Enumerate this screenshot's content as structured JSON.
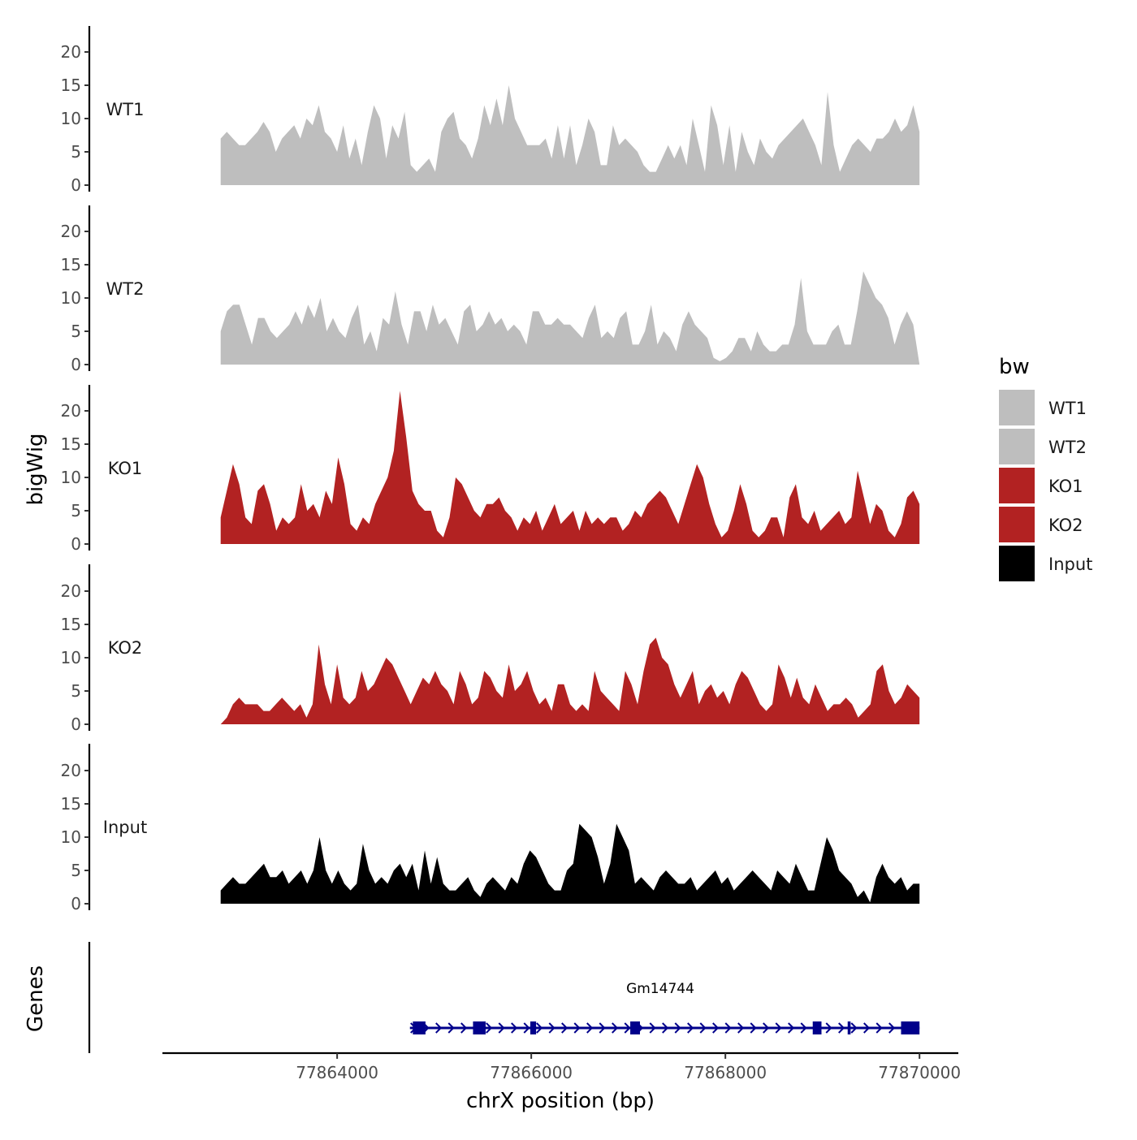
{
  "chart_data": {
    "type": "area",
    "title": "",
    "ylabel": "bigWig",
    "genes_label": "Genes",
    "xlabel": "chrX position (bp)",
    "x_range": [
      77862800,
      77870000
    ],
    "xlim": [
      77862200,
      77870400
    ],
    "x_ticks": [
      77864000,
      77866000,
      77868000,
      77870000
    ],
    "x_tick_labels": [
      "77864000",
      "77866000",
      "77868000",
      "77870000"
    ],
    "y_range": [
      0,
      24
    ],
    "y_ticks": [
      0,
      5,
      10,
      15,
      20
    ],
    "y_tick_labels": [
      "0",
      "5",
      "10",
      "15",
      "20"
    ],
    "legend": {
      "title": "bw",
      "position": "right",
      "entries": [
        {
          "label": "WT1",
          "color": "#bebebe"
        },
        {
          "label": "WT2",
          "color": "#bebebe"
        },
        {
          "label": "KO1",
          "color": "#b22222"
        },
        {
          "label": "KO2",
          "color": "#b22222"
        },
        {
          "label": "Input",
          "color": "#000000"
        }
      ]
    },
    "series": [
      {
        "name": "WT1",
        "color": "#bebebe",
        "values": [
          7,
          8,
          7,
          6,
          6,
          7,
          8,
          9.5,
          8,
          5,
          7,
          8,
          9,
          7,
          10,
          9,
          12,
          8,
          7,
          5,
          9,
          4,
          7,
          3,
          8,
          12,
          10,
          4,
          9,
          7,
          11,
          3,
          2,
          3,
          4,
          2,
          8,
          10,
          11,
          7,
          6,
          4,
          7,
          12,
          9,
          13,
          9,
          15,
          10,
          8,
          6,
          6,
          6,
          7,
          4,
          9,
          4,
          9,
          3,
          6,
          10,
          8,
          3,
          3,
          9,
          6,
          7,
          6,
          5,
          3,
          2,
          2,
          4,
          6,
          4,
          6,
          3,
          10,
          6,
          2,
          12,
          9,
          3,
          9,
          2,
          8,
          5,
          3,
          7,
          5,
          4,
          6,
          7,
          8,
          9,
          10,
          8,
          6,
          3,
          14,
          6,
          2,
          4,
          6,
          7,
          6,
          5,
          7,
          7,
          8,
          10,
          8,
          9,
          12,
          8
        ]
      },
      {
        "name": "WT2",
        "color": "#bebebe",
        "values": [
          5,
          8,
          9,
          9,
          6,
          3,
          7,
          7,
          5,
          4,
          5,
          6,
          8,
          6,
          9,
          7,
          10,
          5,
          7,
          5,
          4,
          7,
          9,
          3,
          5,
          2,
          7,
          6,
          11,
          6,
          3,
          8,
          8,
          5,
          9,
          6,
          7,
          5,
          3,
          8,
          9,
          5,
          6,
          8,
          6,
          7,
          5,
          6,
          5,
          3,
          8,
          8,
          6,
          6,
          7,
          6,
          6,
          5,
          4,
          7,
          9,
          4,
          5,
          4,
          7,
          8,
          3,
          3,
          5,
          9,
          3,
          5,
          4,
          2,
          6,
          8,
          6,
          5,
          4,
          1,
          0.5,
          1,
          2,
          4,
          4,
          2,
          5,
          3,
          2,
          2,
          3,
          3,
          6,
          13,
          5,
          3,
          3,
          3,
          5,
          6,
          3,
          3,
          8,
          14,
          12,
          10,
          9,
          7,
          3,
          6,
          8,
          6,
          0
        ]
      },
      {
        "name": "KO1",
        "color": "#b22222",
        "values": [
          4,
          8,
          12,
          9,
          4,
          3,
          8,
          9,
          6,
          2,
          4,
          3,
          4,
          9,
          5,
          6,
          4,
          8,
          6,
          13,
          9,
          3,
          2,
          4,
          3,
          6,
          8,
          10,
          14,
          23,
          16,
          8,
          6,
          5,
          5,
          2,
          1,
          4,
          10,
          9,
          7,
          5,
          4,
          6,
          6,
          7,
          5,
          4,
          2,
          4,
          3,
          5,
          2,
          4,
          6,
          3,
          4,
          5,
          2,
          5,
          3,
          4,
          3,
          4,
          4,
          2,
          3,
          5,
          4,
          6,
          7,
          8,
          7,
          5,
          3,
          6,
          9,
          12,
          10,
          6,
          3,
          1,
          2,
          5,
          9,
          6,
          2,
          1,
          2,
          4,
          4,
          1,
          7,
          9,
          4,
          3,
          5,
          2,
          3,
          4,
          5,
          3,
          4,
          11,
          7,
          3,
          6,
          5,
          2,
          1,
          3,
          7,
          8,
          6
        ]
      },
      {
        "name": "KO2",
        "color": "#b22222",
        "values": [
          0,
          1,
          3,
          4,
          3,
          3,
          3,
          2,
          2,
          3,
          4,
          3,
          2,
          3,
          1,
          3,
          12,
          6,
          3,
          9,
          4,
          3,
          4,
          8,
          5,
          6,
          8,
          10,
          9,
          7,
          5,
          3,
          5,
          7,
          6,
          8,
          6,
          5,
          3,
          8,
          6,
          3,
          4,
          8,
          7,
          5,
          4,
          9,
          5,
          6,
          8,
          5,
          3,
          4,
          2,
          6,
          6,
          3,
          2,
          3,
          2,
          8,
          5,
          4,
          3,
          2,
          8,
          6,
          3,
          8,
          12,
          13,
          10,
          9,
          6,
          4,
          6,
          8,
          3,
          5,
          6,
          4,
          5,
          3,
          6,
          8,
          7,
          5,
          3,
          2,
          3,
          9,
          7,
          4,
          7,
          4,
          3,
          6,
          4,
          2,
          3,
          3,
          4,
          3,
          1,
          2,
          3,
          8,
          9,
          5,
          3,
          4,
          6,
          5,
          4
        ]
      },
      {
        "name": "Input",
        "color": "#000000",
        "values": [
          2,
          3,
          4,
          3,
          3,
          4,
          5,
          6,
          4,
          4,
          5,
          3,
          4,
          5,
          3,
          5,
          10,
          5,
          3,
          5,
          3,
          2,
          3,
          9,
          5,
          3,
          4,
          3,
          5,
          6,
          4,
          6,
          2,
          8,
          3,
          7,
          3,
          2,
          2,
          3,
          4,
          2,
          1,
          3,
          4,
          3,
          2,
          4,
          3,
          6,
          8,
          7,
          5,
          3,
          2,
          2,
          5,
          6,
          12,
          11,
          10,
          7,
          3,
          6,
          12,
          10,
          8,
          3,
          4,
          3,
          2,
          4,
          5,
          4,
          3,
          3,
          4,
          2,
          3,
          4,
          5,
          3,
          4,
          2,
          3,
          4,
          5,
          4,
          3,
          2,
          5,
          4,
          3,
          6,
          4,
          2,
          2,
          6,
          10,
          8,
          5,
          4,
          3,
          1,
          2,
          0.2,
          4,
          6,
          4,
          3,
          4,
          2,
          3,
          3
        ]
      }
    ],
    "gene_track": {
      "gene_name": "Gm14744",
      "color": "#00008b",
      "start": 77864750,
      "end": 77870000,
      "strand": "+",
      "exons": [
        [
          77864780,
          77864910
        ],
        [
          77865400,
          77865530
        ],
        [
          77865990,
          77866050
        ],
        [
          77867020,
          77867120
        ],
        [
          77868900,
          77868990
        ],
        [
          77869260,
          77869290
        ],
        [
          77869810,
          77870000
        ]
      ]
    }
  }
}
